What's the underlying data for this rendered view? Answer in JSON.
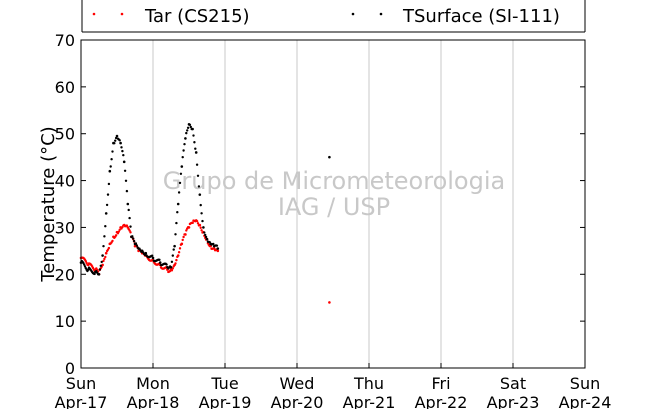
{
  "chart_data": {
    "type": "scatter",
    "title": "",
    "ylabel": "Temperature (°C)",
    "xlabel": "",
    "ylim": [
      0,
      70
    ],
    "yticks": [
      0,
      10,
      20,
      30,
      40,
      50,
      60,
      70
    ],
    "xlim": [
      0,
      7
    ],
    "xticks": [
      {
        "x": 0,
        "day": "Sun",
        "date": "Apr-17"
      },
      {
        "x": 1,
        "day": "Mon",
        "date": "Apr-18"
      },
      {
        "x": 2,
        "day": "Tue",
        "date": "Apr-19"
      },
      {
        "x": 3,
        "day": "Wed",
        "date": "Apr-20"
      },
      {
        "x": 4,
        "day": "Thu",
        "date": "Apr-21"
      },
      {
        "x": 5,
        "day": "Fri",
        "date": "Apr-22"
      },
      {
        "x": 6,
        "day": "Sat",
        "date": "Apr-23"
      },
      {
        "x": 7,
        "day": "Sun",
        "date": "Apr-24"
      }
    ],
    "x_unit": "days since Apr-17 00:00",
    "grid": "vertical",
    "legend": "top",
    "watermark": [
      "Grupo de Micrometeorologia",
      "IAG / USP"
    ],
    "series": [
      {
        "name": "Tar (CS215)",
        "color": "#ff0000",
        "x": [
          0.0,
          0.1,
          0.2,
          0.25,
          0.3,
          0.35,
          0.4,
          0.45,
          0.5,
          0.55,
          0.6,
          0.65,
          0.7,
          0.75,
          0.8,
          0.85,
          0.9,
          1.0,
          1.1,
          1.2,
          1.25,
          1.3,
          1.35,
          1.4,
          1.45,
          1.5,
          1.55,
          1.6,
          1.65,
          1.7,
          1.75,
          1.8,
          1.85,
          1.9,
          3.45
        ],
        "y": [
          23.5,
          22.0,
          21.0,
          20.0,
          22.0,
          24.5,
          26.5,
          28.0,
          29.0,
          30.0,
          30.5,
          30.0,
          28.0,
          26.0,
          25.0,
          24.5,
          24.0,
          23.0,
          22.0,
          21.0,
          21.0,
          22.0,
          24.0,
          26.5,
          28.5,
          30.0,
          31.0,
          31.5,
          30.5,
          29.0,
          27.5,
          26.0,
          25.5,
          25.0,
          14.0
        ]
      },
      {
        "name": "TSurface (SI-111)",
        "color": "#000000",
        "x": [
          0.0,
          0.1,
          0.2,
          0.25,
          0.3,
          0.35,
          0.4,
          0.45,
          0.5,
          0.55,
          0.6,
          0.65,
          0.7,
          0.75,
          0.8,
          0.85,
          0.9,
          1.0,
          1.1,
          1.2,
          1.25,
          1.3,
          1.35,
          1.4,
          1.45,
          1.5,
          1.55,
          1.6,
          1.65,
          1.7,
          1.75,
          1.8,
          1.85,
          1.9,
          3.45
        ],
        "y": [
          22.5,
          21.0,
          20.5,
          20.0,
          24.0,
          33.0,
          42.0,
          48.0,
          49.5,
          48.0,
          44.0,
          35.0,
          28.0,
          26.5,
          25.5,
          25.0,
          24.5,
          23.5,
          22.5,
          21.5,
          21.5,
          26.0,
          35.0,
          43.0,
          49.0,
          52.0,
          51.0,
          46.0,
          37.0,
          30.0,
          27.5,
          26.5,
          26.0,
          25.5,
          45.0
        ]
      }
    ]
  }
}
